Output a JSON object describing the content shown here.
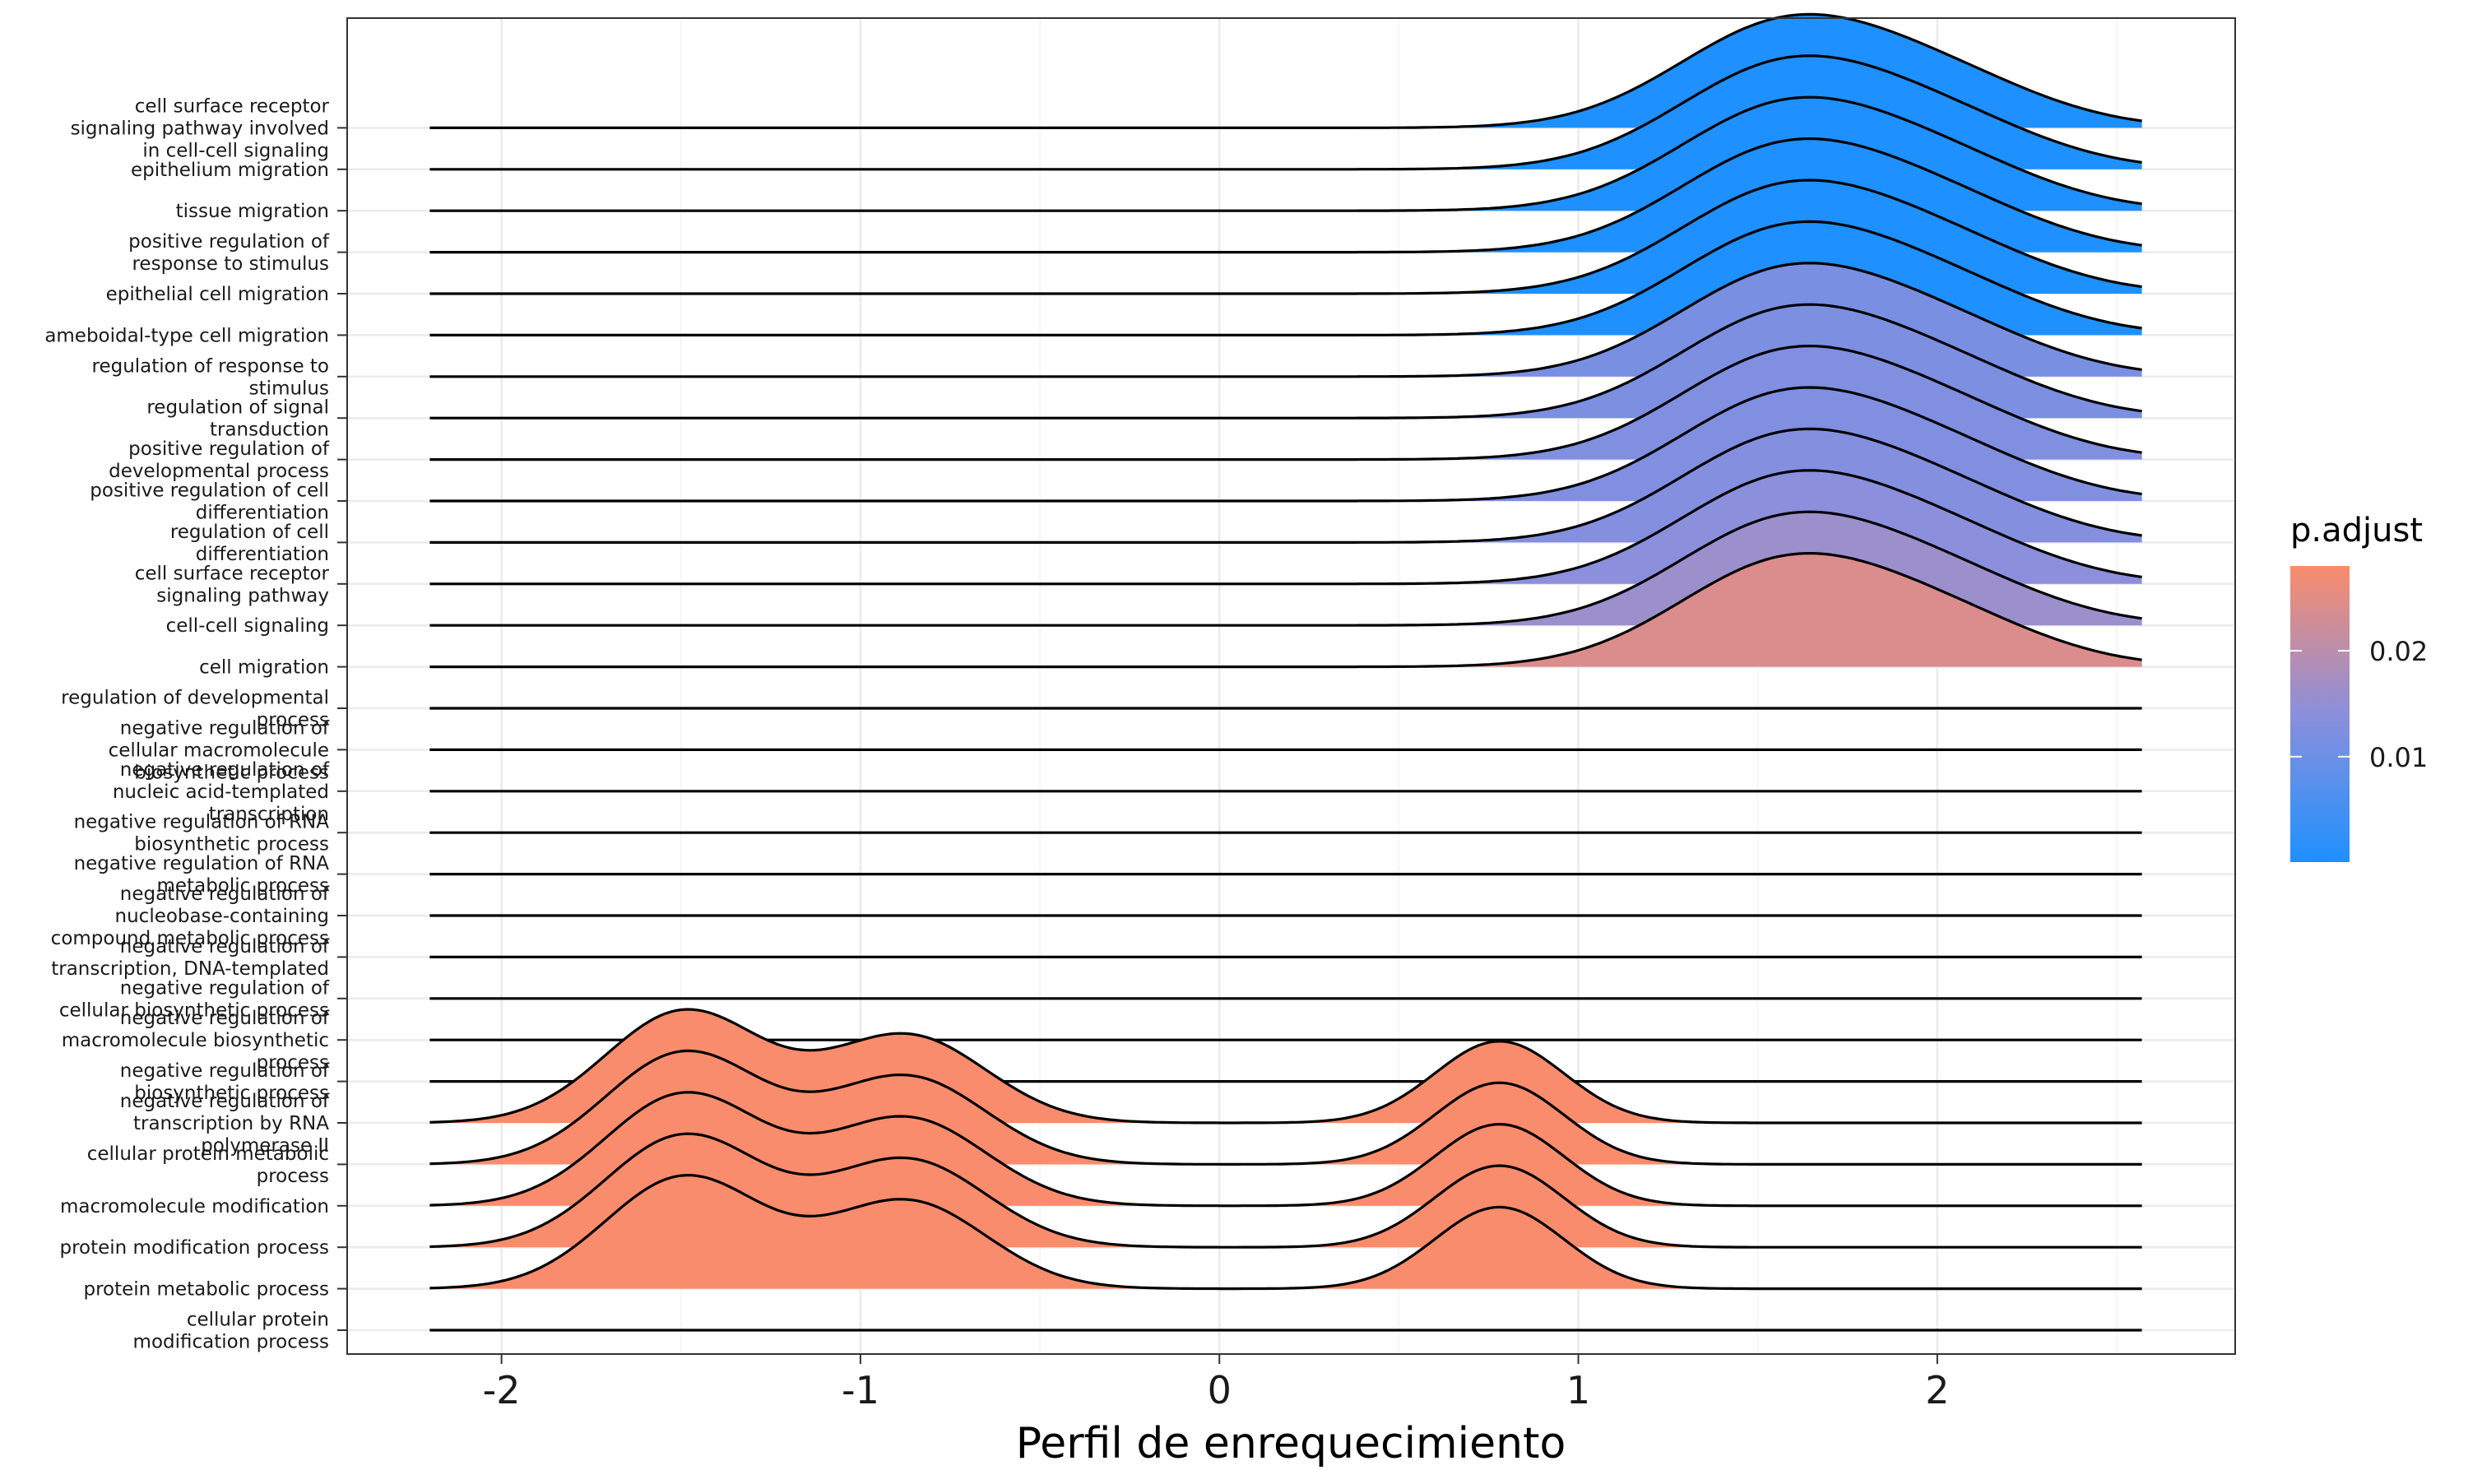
{
  "chart_data": {
    "type": "ridgeline",
    "title": "",
    "xlabel": "Perfil de enrequecimiento",
    "ylabel": "",
    "xlim": [
      -2.43,
      2.83
    ],
    "x_ticks": [
      -2,
      -1,
      0,
      1,
      2
    ],
    "x_tick_labels": [
      "-2",
      "-1",
      "0",
      "1",
      "2"
    ],
    "grid": true,
    "legend_title": "p.adjust",
    "legend_position": "right",
    "legend_ticks": [
      {
        "value": 0.02,
        "label": "0.02"
      },
      {
        "value": 0.01,
        "label": "0.01"
      }
    ],
    "legend_range": [
      5e-05,
      0.028
    ],
    "legend_colors": {
      "low": "#1E90FF",
      "mid": "#8C8FDC",
      "high": "#F98C6C"
    },
    "density_line_range": [
      -2.2,
      2.57
    ],
    "profiles": {
      "up": {
        "components": [
          {
            "mean": 1.57,
            "sd": 0.3,
            "weight": 1.0
          },
          {
            "mean": 2.03,
            "sd": 0.28,
            "weight": 0.42
          }
        ]
      },
      "down": {
        "components": [
          {
            "mean": -1.49,
            "sd": 0.22,
            "weight": 1.0
          },
          {
            "mean": -0.87,
            "sd": 0.22,
            "weight": 0.78
          },
          {
            "mean": 0.78,
            "sd": 0.18,
            "weight": 0.73
          }
        ]
      }
    },
    "categories": [
      {
        "label": "cell surface receptor signaling pathway involved in cell-cell signaling",
        "profile": "up",
        "p_adjust": 5e-05
      },
      {
        "label": "epithelium migration",
        "profile": "up",
        "p_adjust": 5e-05
      },
      {
        "label": "tissue migration",
        "profile": "up",
        "p_adjust": 5e-05
      },
      {
        "label": "positive regulation of response to stimulus",
        "profile": "up",
        "p_adjust": 5e-05
      },
      {
        "label": "epithelial cell migration",
        "profile": "up",
        "p_adjust": 5e-05
      },
      {
        "label": "ameboidal-type cell migration",
        "profile": "up",
        "p_adjust": 0.0001
      },
      {
        "label": "regulation of response to stimulus",
        "profile": "up",
        "p_adjust": 0.0115
      },
      {
        "label": "regulation of signal transduction",
        "profile": "up",
        "p_adjust": 0.012
      },
      {
        "label": "positive regulation of developmental process",
        "profile": "up",
        "p_adjust": 0.0125
      },
      {
        "label": "positive regulation of cell differentiation",
        "profile": "up",
        "p_adjust": 0.0125
      },
      {
        "label": "regulation of cell differentiation",
        "profile": "up",
        "p_adjust": 0.013
      },
      {
        "label": "cell surface receptor signaling pathway",
        "profile": "up",
        "p_adjust": 0.014
      },
      {
        "label": "cell-cell signaling",
        "profile": "up",
        "p_adjust": 0.016
      },
      {
        "label": "cell migration",
        "profile": "up",
        "p_adjust": 0.024
      },
      {
        "label": "regulation of developmental process",
        "profile": "none",
        "p_adjust": null
      },
      {
        "label": "negative regulation of cellular macromolecule biosynthetic process",
        "profile": "none",
        "p_adjust": null
      },
      {
        "label": "negative regulation of nucleic acid-templated transcription",
        "profile": "none",
        "p_adjust": null
      },
      {
        "label": "negative regulation of RNA biosynthetic process",
        "profile": "none",
        "p_adjust": null
      },
      {
        "label": "negative regulation of RNA metabolic process",
        "profile": "none",
        "p_adjust": null
      },
      {
        "label": "negative regulation of nucleobase-containing compound metabolic process",
        "profile": "none",
        "p_adjust": null
      },
      {
        "label": "negative regulation of transcription, DNA-templated",
        "profile": "none",
        "p_adjust": null
      },
      {
        "label": "negative regulation of cellular biosynthetic process",
        "profile": "none",
        "p_adjust": null
      },
      {
        "label": "negative regulation of macromolecule biosynthetic process",
        "profile": "none",
        "p_adjust": null
      },
      {
        "label": "negative regulation of biosynthetic process",
        "profile": "none",
        "p_adjust": null
      },
      {
        "label": "negative regulation of transcription by RNA polymerase II",
        "profile": "down",
        "p_adjust": 0.028
      },
      {
        "label": "cellular protein metabolic process",
        "profile": "down",
        "p_adjust": 0.028
      },
      {
        "label": "macromolecule modification",
        "profile": "down",
        "p_adjust": 0.028
      },
      {
        "label": "protein modification process",
        "profile": "down",
        "p_adjust": 0.028
      },
      {
        "label": "protein metabolic process",
        "profile": "down",
        "p_adjust": 0.028
      },
      {
        "label": "cellular protein modification process",
        "profile": "none",
        "p_adjust": null
      }
    ],
    "label_lines": [
      [
        "cell surface receptor",
        "signaling pathway involved",
        "in cell-cell signaling"
      ],
      [
        "epithelium migration"
      ],
      [
        "tissue migration"
      ],
      [
        "positive regulation of",
        "response to stimulus"
      ],
      [
        "epithelial cell migration"
      ],
      [
        "ameboidal-type cell migration"
      ],
      [
        "regulation of response to",
        "stimulus"
      ],
      [
        "regulation of signal",
        "transduction"
      ],
      [
        "positive regulation of",
        "developmental process"
      ],
      [
        "positive regulation of cell",
        "differentiation"
      ],
      [
        "regulation of cell",
        "differentiation"
      ],
      [
        "cell surface receptor",
        "signaling pathway"
      ],
      [
        "cell-cell signaling"
      ],
      [
        "cell migration"
      ],
      [
        "regulation of developmental",
        "process"
      ],
      [
        "negative regulation of",
        "cellular macromolecule",
        "biosynthetic process"
      ],
      [
        "negative regulation of",
        "nucleic acid-templated",
        "transcription"
      ],
      [
        "negative regulation of RNA",
        "biosynthetic process"
      ],
      [
        "negative regulation of RNA",
        "metabolic process"
      ],
      [
        "negative regulation of",
        "nucleobase-containing",
        "compound metabolic process"
      ],
      [
        "negative regulation of",
        "transcription, DNA-templated"
      ],
      [
        "negative regulation of",
        "cellular biosynthetic process"
      ],
      [
        "negative regulation of",
        "macromolecule biosynthetic",
        "process"
      ],
      [
        "negative regulation of",
        "biosynthetic process"
      ],
      [
        "negative regulation of",
        "transcription by RNA",
        "polymerase II"
      ],
      [
        "cellular protein metabolic",
        "process"
      ],
      [
        "macromolecule modification"
      ],
      [
        "protein modification process"
      ],
      [
        "protein metabolic process"
      ],
      [
        "cellular protein",
        "modification process"
      ]
    ]
  }
}
